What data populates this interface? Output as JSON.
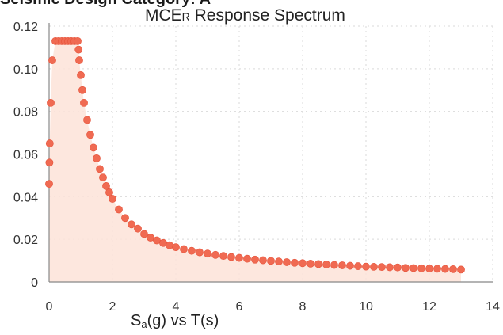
{
  "header": {
    "cut_title": "Seismic Design Category: A"
  },
  "chart_data": {
    "type": "scatter",
    "title_main": "MCE",
    "title_sub": "R",
    "title_rest": " Response Spectrum",
    "xlabel_main": "S",
    "xlabel_sub": "a",
    "xlabel_rest": "(g) vs T(s)",
    "xlim": [
      0,
      14
    ],
    "ylim": [
      0,
      0.12
    ],
    "xticks": [
      0,
      2,
      4,
      6,
      8,
      10,
      12,
      14
    ],
    "xtick_labels": [
      "0",
      "2",
      "4",
      "6",
      "8",
      "10",
      "12",
      "14"
    ],
    "yticks": [
      0,
      0.02,
      0.04,
      0.06,
      0.08,
      0.1,
      0.12
    ],
    "ytick_labels": [
      "0",
      "0.02",
      "0.04",
      "0.06",
      "0.08",
      "0.10",
      "0.12"
    ],
    "grid": true,
    "fill_under": true,
    "series": [
      {
        "x": [
          0,
          0.01,
          0.02,
          0.05,
          0.1,
          0.2,
          0.3,
          0.4,
          0.5,
          0.6,
          0.7,
          0.8,
          0.9,
          0.93,
          0.95,
          1.0,
          1.05,
          1.1,
          1.2,
          1.3,
          1.4,
          1.5,
          1.6,
          1.7,
          1.8,
          1.9,
          2.0,
          2.2,
          2.4,
          2.6,
          2.8,
          3.0,
          3.2,
          3.4,
          3.6,
          3.8,
          4.0,
          4.25,
          4.5,
          4.75,
          5.0,
          5.25,
          5.5,
          5.75,
          6.0,
          6.25,
          6.5,
          6.75,
          7.0,
          7.25,
          7.5,
          7.75,
          8.0,
          8.25,
          8.5,
          8.75,
          9.0,
          9.25,
          9.5,
          9.75,
          10.0,
          10.25,
          10.5,
          10.75,
          11.0,
          11.25,
          11.5,
          11.75,
          12.0,
          12.25,
          12.5,
          12.75,
          13.0
        ],
        "y": [
          0.046,
          0.056,
          0.065,
          0.084,
          0.104,
          0.113,
          0.113,
          0.113,
          0.113,
          0.113,
          0.113,
          0.113,
          0.113,
          0.109,
          0.104,
          0.097,
          0.09,
          0.084,
          0.076,
          0.069,
          0.063,
          0.058,
          0.053,
          0.049,
          0.045,
          0.042,
          0.039,
          0.034,
          0.03,
          0.027,
          0.025,
          0.0225,
          0.0208,
          0.0195,
          0.0183,
          0.0172,
          0.0163,
          0.0154,
          0.0146,
          0.0139,
          0.0133,
          0.0127,
          0.0122,
          0.0117,
          0.0113,
          0.0109,
          0.0105,
          0.0102,
          0.0099,
          0.0096,
          0.0093,
          0.009,
          0.0088,
          0.0086,
          0.0084,
          0.0082,
          0.008,
          0.0078,
          0.0076,
          0.0074,
          0.0072,
          0.0071,
          0.007,
          0.0069,
          0.0068,
          0.0066,
          0.0065,
          0.0064,
          0.0063,
          0.0062,
          0.0061,
          0.006,
          0.0058
        ]
      }
    ]
  },
  "colors": {
    "marker": "#f06a52",
    "marker_stroke": "#e5533a",
    "fill": "#fde3d8",
    "grid": "#d9d9d9",
    "axis": "#888888"
  }
}
